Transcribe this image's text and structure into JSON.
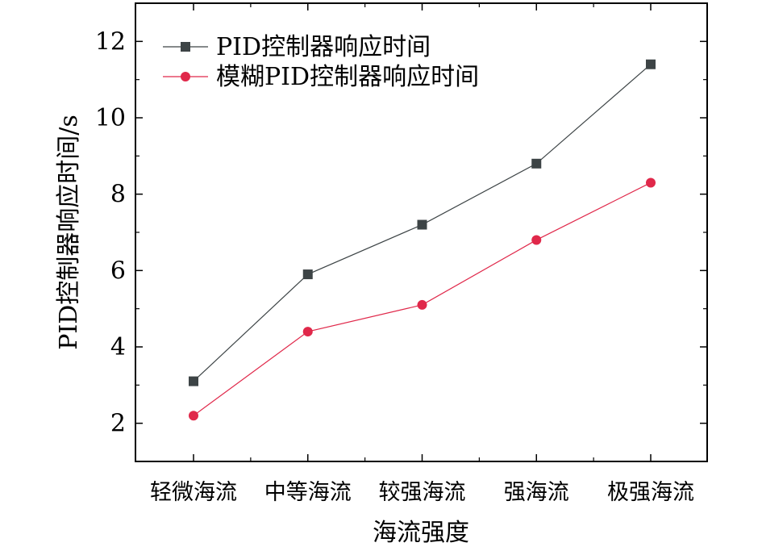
{
  "chart_data": {
    "type": "line",
    "title": "",
    "xlabel": "海流强度",
    "ylabel": "PID控制器响应时间/s",
    "categories": [
      "轻微海流",
      "中等海流",
      "较强海流",
      "强海流",
      "极强海流"
    ],
    "ylim": [
      1,
      13
    ],
    "yticks": [
      2,
      4,
      6,
      8,
      10,
      12
    ],
    "grid": false,
    "legend_position": "top-left",
    "series": [
      {
        "name": "PID控制器响应时间",
        "marker": "square",
        "color": "#3d4446",
        "values": [
          3.1,
          5.9,
          7.2,
          8.8,
          11.4
        ]
      },
      {
        "name": "模糊PID控制器响应时间",
        "marker": "circle",
        "color": "#e0284a",
        "values": [
          2.2,
          4.4,
          5.1,
          6.8,
          8.3
        ]
      }
    ]
  }
}
